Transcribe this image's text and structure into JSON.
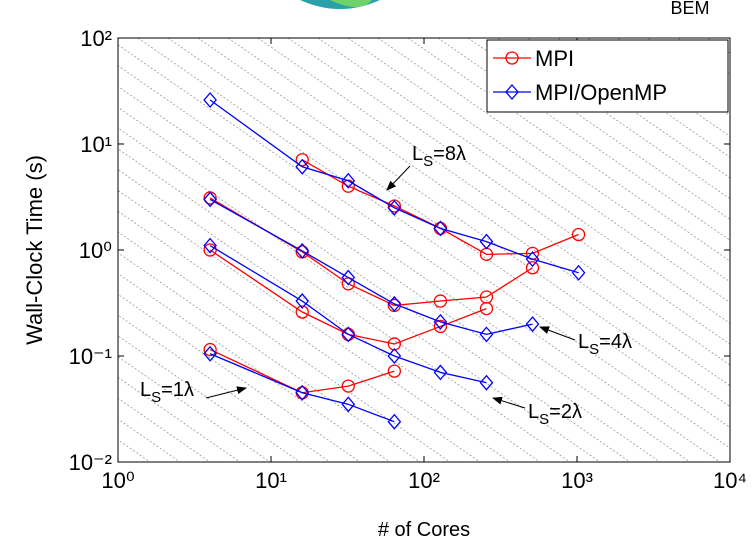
{
  "chart_data": {
    "type": "line",
    "header_text": "BEM",
    "xlabel": "# of Cores",
    "ylabel": "Wall-Clock Time (s)",
    "xscale": "log",
    "yscale": "log",
    "xlim": [
      1,
      10000
    ],
    "ylim": [
      0.01,
      100
    ],
    "xticks": [
      {
        "value": 1,
        "label": "10⁰"
      },
      {
        "value": 10,
        "label": "10¹"
      },
      {
        "value": 100,
        "label": "10²"
      },
      {
        "value": 1000,
        "label": "10³"
      },
      {
        "value": 10000,
        "label": "10⁴"
      }
    ],
    "yticks": [
      {
        "value": 0.01,
        "label": "10⁻²"
      },
      {
        "value": 0.1,
        "label": "10⁻¹"
      },
      {
        "value": 1,
        "label": "10⁰"
      },
      {
        "value": 10,
        "label": "10¹"
      },
      {
        "value": 100,
        "label": "10²"
      }
    ],
    "legend": "upper right",
    "series": [
      {
        "name": "MPI",
        "color": "#ff0000",
        "marker": "circle",
        "lines": [
          {
            "x": [
              16,
              32,
              64,
              128,
              256,
              512,
              1024
            ],
            "values": [
              7.1,
              4.0,
              2.6,
              1.6,
              0.91,
              0.93,
              1.4
            ]
          },
          {
            "x": [
              4,
              16,
              32,
              64,
              128,
              256,
              512
            ],
            "values": [
              3.1,
              0.96,
              0.48,
              0.3,
              0.33,
              0.36,
              0.68
            ]
          },
          {
            "x": [
              4,
              16,
              32,
              64,
              128,
              256
            ],
            "values": [
              1.0,
              0.26,
              0.16,
              0.13,
              0.19,
              0.28
            ]
          },
          {
            "x": [
              4,
              16,
              32,
              64
            ],
            "values": [
              0.115,
              0.045,
              0.052,
              0.072
            ]
          }
        ]
      },
      {
        "name": "MPI/OpenMP",
        "color": "#0000ff",
        "marker": "diamond",
        "lines": [
          {
            "x": [
              4,
              16,
              32,
              64,
              128,
              256,
              512,
              1024
            ],
            "values": [
              26,
              6.1,
              4.5,
              2.5,
              1.6,
              1.2,
              0.82,
              0.61
            ]
          },
          {
            "x": [
              4,
              16,
              32,
              64,
              128,
              256,
              512
            ],
            "values": [
              3.0,
              0.98,
              0.55,
              0.31,
              0.21,
              0.16,
              0.2
            ]
          },
          {
            "x": [
              4,
              16,
              32,
              64,
              128,
              256
            ],
            "values": [
              1.1,
              0.33,
              0.16,
              0.1,
              0.07,
              0.056
            ]
          },
          {
            "x": [
              4,
              16,
              32,
              64
            ],
            "values": [
              0.105,
              0.045,
              0.035,
              0.024
            ]
          }
        ]
      }
    ],
    "annotations": [
      {
        "text": "L",
        "sub": "S",
        "rest": "=8λ"
      },
      {
        "text": "L",
        "sub": "S",
        "rest": "=4λ"
      },
      {
        "text": "L",
        "sub": "S",
        "rest": "=2λ"
      },
      {
        "text": "L",
        "sub": "S",
        "rest": "=1λ"
      }
    ]
  }
}
